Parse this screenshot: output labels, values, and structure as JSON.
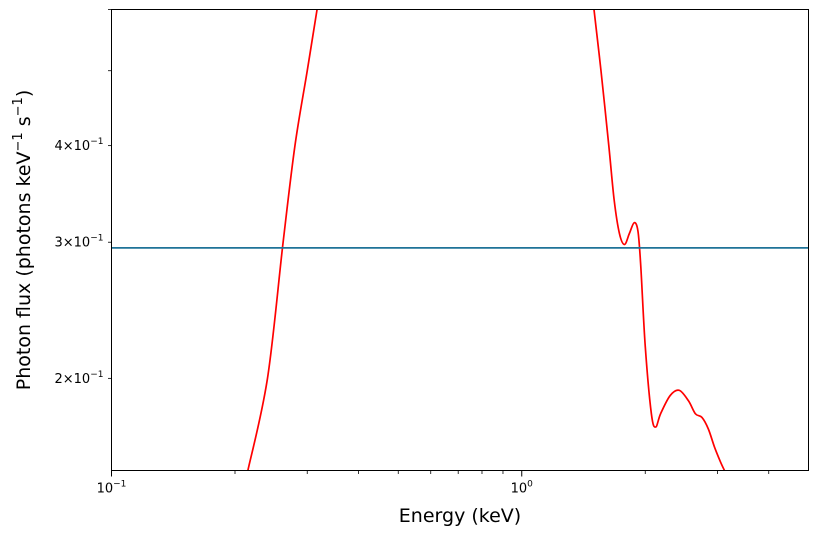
{
  "chart_data": {
    "type": "line",
    "xlabel": "Energy (keV)",
    "ylabel_parts": {
      "pre": "Photon flux (photons keV",
      "sup1": "−1",
      "mid": " s",
      "sup2": "−1",
      "post": ")"
    },
    "xscale": "log",
    "yscale": "log",
    "xlim": [
      0.1,
      5.0
    ],
    "ylim": [
      0.152,
      0.6
    ],
    "grid": false,
    "x_major_ticks": [
      {
        "value": 0.1,
        "base": "10",
        "exp": "−1"
      },
      {
        "value": 1.0,
        "base": "10",
        "exp": "0"
      }
    ],
    "x_minor_ticks": [
      0.2,
      0.3,
      0.4,
      0.5,
      0.6,
      0.7,
      0.8,
      0.9,
      2,
      3,
      4
    ],
    "y_labeled_ticks": [
      {
        "value": 0.2,
        "mant": "2",
        "base": "10",
        "exp": "−1"
      },
      {
        "value": 0.3,
        "mant": "3",
        "base": "10",
        "exp": "−1"
      },
      {
        "value": 0.4,
        "mant": "4",
        "base": "10",
        "exp": "−1"
      }
    ],
    "y_minor_ticks": [
      0.5,
      0.6
    ],
    "series": [
      {
        "color": "#ff0000",
        "segments": [
          [
            [
              0.215,
              0.152
            ],
            [
              0.24,
              0.2
            ],
            [
              0.262,
              0.3
            ],
            [
              0.28,
              0.4
            ],
            [
              0.3,
              0.5
            ],
            [
              0.317,
              0.6
            ]
          ],
          [
            [
              1.5,
              0.6
            ],
            [
              1.56,
              0.5
            ],
            [
              1.63,
              0.4
            ],
            [
              1.68,
              0.34
            ],
            [
              1.73,
              0.308
            ],
            [
              1.78,
              0.298
            ],
            [
              1.83,
              0.308
            ],
            [
              1.88,
              0.318
            ],
            [
              1.92,
              0.31
            ],
            [
              1.95,
              0.28
            ],
            [
              2.0,
              0.22
            ],
            [
              2.07,
              0.18
            ],
            [
              2.12,
              0.173
            ],
            [
              2.18,
              0.18
            ],
            [
              2.3,
              0.19
            ],
            [
              2.42,
              0.193
            ],
            [
              2.55,
              0.187
            ],
            [
              2.65,
              0.18
            ],
            [
              2.75,
              0.178
            ],
            [
              2.85,
              0.172
            ],
            [
              2.95,
              0.163
            ],
            [
              3.05,
              0.156
            ],
            [
              3.12,
              0.152
            ]
          ]
        ]
      },
      {
        "color": "#1f7398",
        "segments": [
          [
            [
              0.1,
              0.295
            ],
            [
              5.0,
              0.295
            ]
          ]
        ]
      }
    ]
  }
}
